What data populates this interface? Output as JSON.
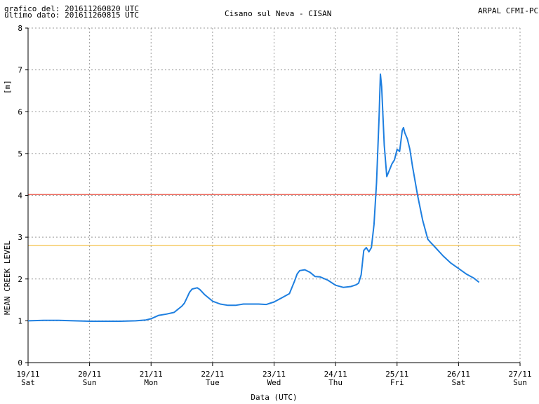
{
  "header": {
    "left_line1": "grafico del: 201611260820 UTC",
    "left_line2": "ultimo dato: 201611260815 UTC",
    "center": "Cisano sul Neva - CISAN",
    "right": "ARPAL CFMI-PC"
  },
  "chart_data": {
    "type": "line",
    "title": "Cisano sul Neva - CISAN",
    "xlabel": "Data (UTC)",
    "ylabel": "MEAN CREEK LEVEL",
    "yunit": "[m]",
    "ylim": [
      0,
      8
    ],
    "y_ticks": [
      0,
      1,
      2,
      3,
      4,
      5,
      6,
      7,
      8
    ],
    "xlim": [
      "2016-11-19 00:00",
      "2016-11-27 00:00"
    ],
    "x_ticks": [
      {
        "date": "19/11",
        "day": "Sat"
      },
      {
        "date": "20/11",
        "day": "Sun"
      },
      {
        "date": "21/11",
        "day": "Mon"
      },
      {
        "date": "22/11",
        "day": "Tue"
      },
      {
        "date": "23/11",
        "day": "Wed"
      },
      {
        "date": "24/11",
        "day": "Thu"
      },
      {
        "date": "25/11",
        "day": "Fri"
      },
      {
        "date": "26/11",
        "day": "Sat"
      },
      {
        "date": "27/11",
        "day": "Sun"
      }
    ],
    "grid": true,
    "thresholds": [
      {
        "value": 4.02,
        "color": "#e53a2a"
      },
      {
        "value": 2.8,
        "color": "#f2b21a"
      }
    ],
    "series": [
      {
        "color": "#1e7fe0",
        "points": [
          [
            "2016-11-19 00:00",
            1.0
          ],
          [
            "2016-11-19 06:00",
            1.01
          ],
          [
            "2016-11-19 12:00",
            1.01
          ],
          [
            "2016-11-19 18:00",
            1.0
          ],
          [
            "2016-11-20 00:00",
            0.99
          ],
          [
            "2016-11-20 06:00",
            0.99
          ],
          [
            "2016-11-20 12:00",
            0.99
          ],
          [
            "2016-11-20 18:00",
            1.0
          ],
          [
            "2016-11-20 22:00",
            1.02
          ],
          [
            "2016-11-21 00:00",
            1.05
          ],
          [
            "2016-11-21 03:00",
            1.13
          ],
          [
            "2016-11-21 06:00",
            1.16
          ],
          [
            "2016-11-21 09:00",
            1.2
          ],
          [
            "2016-11-21 12:00",
            1.35
          ],
          [
            "2016-11-21 13:00",
            1.42
          ],
          [
            "2016-11-21 14:00",
            1.55
          ],
          [
            "2016-11-21 15:00",
            1.68
          ],
          [
            "2016-11-21 16:00",
            1.76
          ],
          [
            "2016-11-21 18:00",
            1.79
          ],
          [
            "2016-11-21 19:00",
            1.75
          ],
          [
            "2016-11-21 21:00",
            1.62
          ],
          [
            "2016-11-22 00:00",
            1.47
          ],
          [
            "2016-11-22 03:00",
            1.4
          ],
          [
            "2016-11-22 06:00",
            1.37
          ],
          [
            "2016-11-22 09:00",
            1.37
          ],
          [
            "2016-11-22 12:00",
            1.4
          ],
          [
            "2016-11-22 18:00",
            1.4
          ],
          [
            "2016-11-22 21:00",
            1.39
          ],
          [
            "2016-11-23 00:00",
            1.45
          ],
          [
            "2016-11-23 03:00",
            1.55
          ],
          [
            "2016-11-23 06:00",
            1.65
          ],
          [
            "2016-11-23 08:00",
            1.95
          ],
          [
            "2016-11-23 09:00",
            2.12
          ],
          [
            "2016-11-23 10:00",
            2.2
          ],
          [
            "2016-11-23 12:00",
            2.22
          ],
          [
            "2016-11-23 14:00",
            2.16
          ],
          [
            "2016-11-23 16:00",
            2.06
          ],
          [
            "2016-11-23 18:00",
            2.05
          ],
          [
            "2016-11-23 21:00",
            1.97
          ],
          [
            "2016-11-24 00:00",
            1.85
          ],
          [
            "2016-11-24 03:00",
            1.8
          ],
          [
            "2016-11-24 06:00",
            1.82
          ],
          [
            "2016-11-24 08:00",
            1.86
          ],
          [
            "2016-11-24 09:00",
            1.9
          ],
          [
            "2016-11-24 10:00",
            2.1
          ],
          [
            "2016-11-24 11:00",
            2.68
          ],
          [
            "2016-11-24 12:00",
            2.75
          ],
          [
            "2016-11-24 13:00",
            2.65
          ],
          [
            "2016-11-24 14:00",
            2.75
          ],
          [
            "2016-11-24 15:00",
            3.3
          ],
          [
            "2016-11-24 16:00",
            4.3
          ],
          [
            "2016-11-24 17:00",
            5.9
          ],
          [
            "2016-11-24 17:30",
            6.9
          ],
          [
            "2016-11-24 18:00",
            6.6
          ],
          [
            "2016-11-24 19:00",
            5.2
          ],
          [
            "2016-11-24 20:00",
            4.45
          ],
          [
            "2016-11-24 21:00",
            4.6
          ],
          [
            "2016-11-24 22:00",
            4.75
          ],
          [
            "2016-11-24 23:00",
            4.85
          ],
          [
            "2016-11-25 00:00",
            5.1
          ],
          [
            "2016-11-25 01:00",
            5.05
          ],
          [
            "2016-11-25 02:00",
            5.55
          ],
          [
            "2016-11-25 02:30",
            5.62
          ],
          [
            "2016-11-25 03:00",
            5.5
          ],
          [
            "2016-11-25 04:00",
            5.35
          ],
          [
            "2016-11-25 05:00",
            5.1
          ],
          [
            "2016-11-25 06:00",
            4.7
          ],
          [
            "2016-11-25 08:00",
            4.0
          ],
          [
            "2016-11-25 10:00",
            3.4
          ],
          [
            "2016-11-25 12:00",
            2.95
          ],
          [
            "2016-11-25 13:00",
            2.88
          ],
          [
            "2016-11-25 15:00",
            2.75
          ],
          [
            "2016-11-25 18:00",
            2.55
          ],
          [
            "2016-11-25 21:00",
            2.38
          ],
          [
            "2016-11-26 00:00",
            2.25
          ],
          [
            "2016-11-26 03:00",
            2.12
          ],
          [
            "2016-11-26 06:00",
            2.02
          ],
          [
            "2016-11-26 08:00",
            1.92
          ]
        ]
      }
    ]
  }
}
